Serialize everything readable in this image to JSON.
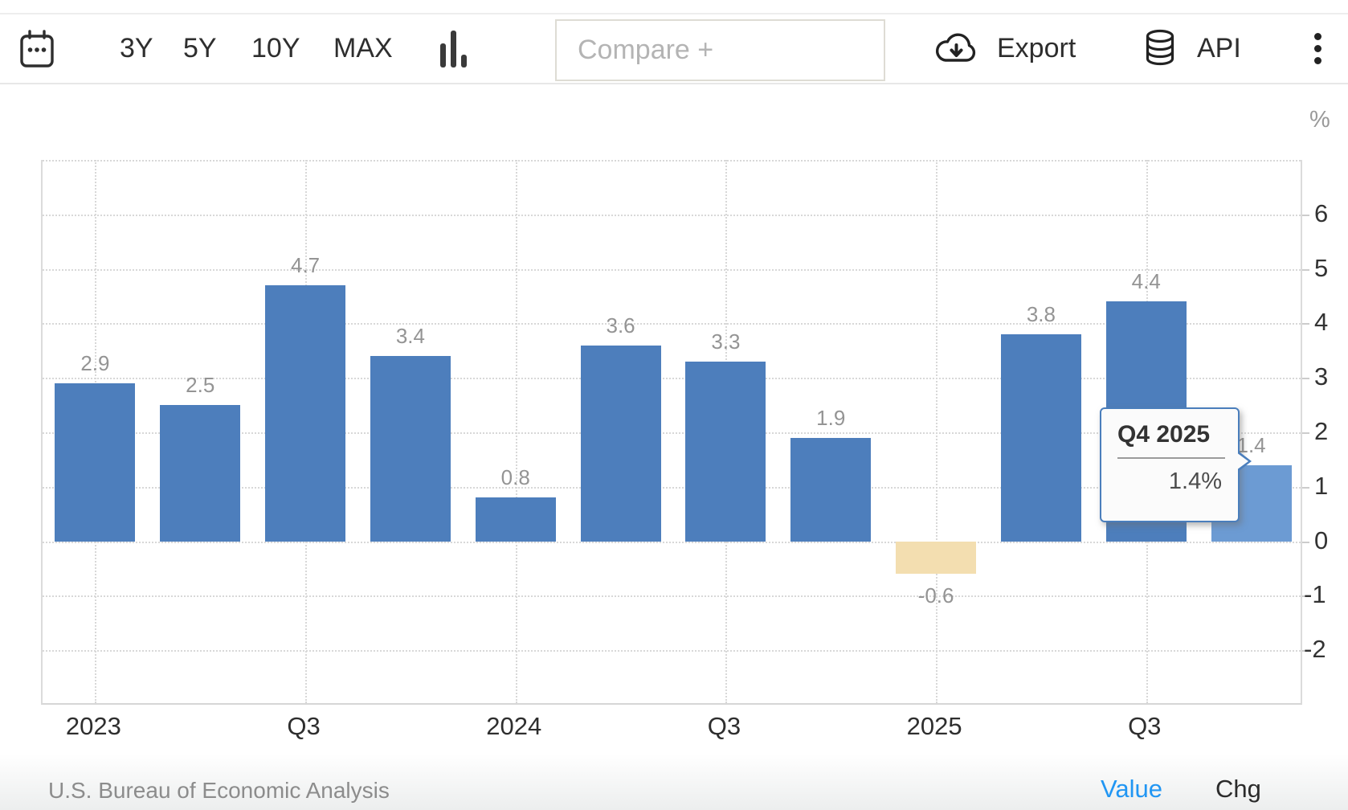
{
  "toolbar": {
    "range_buttons": [
      {
        "label": "3Y"
      },
      {
        "label": "5Y"
      },
      {
        "label": "10Y"
      },
      {
        "label": "MAX"
      }
    ],
    "compare_placeholder": "Compare +",
    "compare_value": "",
    "export_label": "Export",
    "api_label": "API",
    "icons": [
      "calendar-icon",
      "bar-chart-type-icon",
      "cloud-download-icon",
      "database-icon",
      "kebab-menu-icon"
    ]
  },
  "chart_data": {
    "type": "bar",
    "title": "",
    "unit_label": "%",
    "categories": [
      "Q1 2023",
      "Q2 2023",
      "Q3 2023",
      "Q4 2023",
      "Q1 2024",
      "Q2 2024",
      "Q3 2024",
      "Q4 2024",
      "Q1 2025",
      "Q2 2025",
      "Q3 2025",
      "Q4 2025"
    ],
    "values": [
      2.9,
      2.5,
      4.7,
      3.4,
      0.8,
      3.6,
      3.3,
      1.9,
      -0.6,
      3.8,
      4.4,
      1.4
    ],
    "data_labels": [
      "2.9",
      "2.5",
      "4.7",
      "3.4",
      "0.8",
      "3.6",
      "3.3",
      "1.9",
      "-0.6",
      "3.8",
      "4.4",
      "1.4"
    ],
    "x_tick_labels": [
      "2023",
      "Q3",
      "2024",
      "Q3",
      "2025",
      "Q3"
    ],
    "x_tick_slots": [
      0,
      2,
      4,
      6,
      8,
      10
    ],
    "y_ticks": [
      6,
      5,
      4,
      3,
      2,
      1,
      0,
      -1,
      -2
    ],
    "ylim": [
      -3,
      7
    ],
    "grid": true,
    "legend": "none",
    "highlight_index": 11
  },
  "tooltip": {
    "title": "Q4 2025",
    "value": "1.4%"
  },
  "footer": {
    "source": "U.S. Bureau of Economic Analysis",
    "value_label": "Value",
    "chg_label": "Chg"
  },
  "colors": {
    "bar": "#4d7ebc",
    "bar_negative": "#f3deb0",
    "bar_highlight": "#6c9bd3",
    "grid": "#d8d8d8",
    "axis_text": "#333333",
    "data_label": "#949494",
    "tooltip_border": "#4a7ebc",
    "value_link": "#2196f3"
  }
}
